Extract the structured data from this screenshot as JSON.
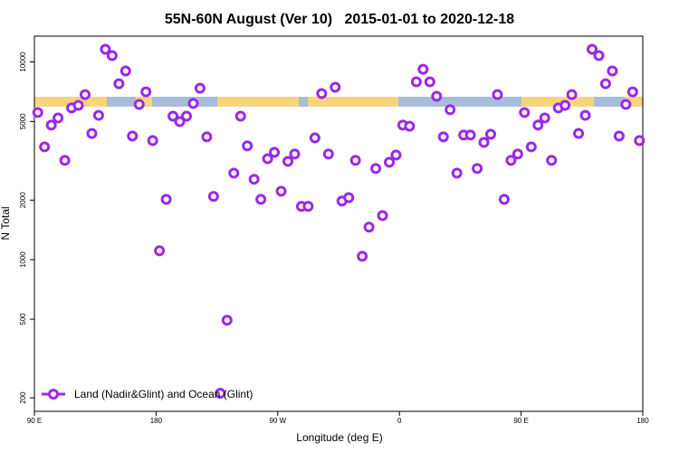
{
  "chart_data": {
    "type": "scatter",
    "title": "55N-60N August (Ver 10)   2015-01-01 to 2020-12-18",
    "xlabel": "Longitude (deg E)",
    "ylabel": "N Total",
    "xlim": [
      90,
      540
    ],
    "ylim": [
      171,
      13500
    ],
    "log_y": true,
    "xticks": [
      {
        "value": 90,
        "label": "90 E"
      },
      180,
      {
        "value": 270,
        "label": "90 W"
      },
      {
        "value": 360,
        "label": "0"
      },
      {
        "value": 450,
        "label": "90 E"
      },
      {
        "value": 540,
        "label": "180"
      }
    ],
    "yticks": [
      200,
      500,
      1000,
      2000,
      5000,
      10000
    ],
    "legend": "lower left",
    "series": [
      {
        "name": "Land (Nadir&Glint) and Ocean (Glint)",
        "color": "#9b28e6",
        "x": [
          92.5,
          97.5,
          102.5,
          107.5,
          112.5,
          117.5,
          122.5,
          127.5,
          132.5,
          137.5,
          142.5,
          147.5,
          152.5,
          157.5,
          162.5,
          167.5,
          172.5,
          177.5,
          182.5,
          187.5,
          192.5,
          197.5,
          202.5,
          207.5,
          212.5,
          217.5,
          222.5,
          227.5,
          232.5,
          237.5,
          242.5,
          247.5,
          252.5,
          257.5,
          262.5,
          267.5,
          272.5,
          277.5,
          282.5,
          287.5,
          292.5,
          297.5,
          302.5,
          307.5,
          312.5,
          317.5,
          322.5,
          327.5,
          332.5,
          337.5,
          342.5,
          347.5,
          352.5,
          357.5,
          362.5,
          367.5,
          372.5,
          377.5,
          382.5,
          387.5,
          392.5,
          397.5,
          402.5,
          407.5,
          412.5,
          417.5,
          422.5,
          427.5,
          432.5,
          437.5,
          442.5,
          447.5,
          452.5,
          457.5,
          462.5,
          467.5,
          472.5,
          477.5,
          482.5,
          487.5,
          492.5,
          497.5,
          502.5,
          507.5,
          512.5,
          517.5,
          522.5,
          527.5,
          532.5,
          537.5
        ],
        "values": [
          5550,
          3720,
          4790,
          5210,
          3180,
          5850,
          6030,
          6840,
          4350,
          5370,
          11590,
          10760,
          7760,
          9000,
          4220,
          6100,
          7060,
          4000,
          1110,
          2020,
          5320,
          4990,
          5320,
          6170,
          7360,
          4180,
          2090,
          211,
          494,
          2740,
          5320,
          3760,
          2550,
          2020,
          3240,
          3490,
          2220,
          3140,
          3420,
          1860,
          1860,
          4130,
          6920,
          3420,
          7450,
          1980,
          2060,
          3180,
          1040,
          1460,
          2890,
          1670,
          3110,
          3380,
          4790,
          4730,
          7930,
          9180,
          7930,
          6700,
          4180,
          5730,
          2740,
          4270,
          4270,
          2890,
          3920,
          4310,
          6840,
          2020,
          3180,
          3420,
          5550,
          3720,
          4790,
          5210,
          3180,
          5850,
          6030,
          6840,
          4350,
          5370,
          11590,
          10760,
          7760,
          9000,
          4220,
          6100,
          7060,
          4000
        ]
      }
    ]
  }
}
